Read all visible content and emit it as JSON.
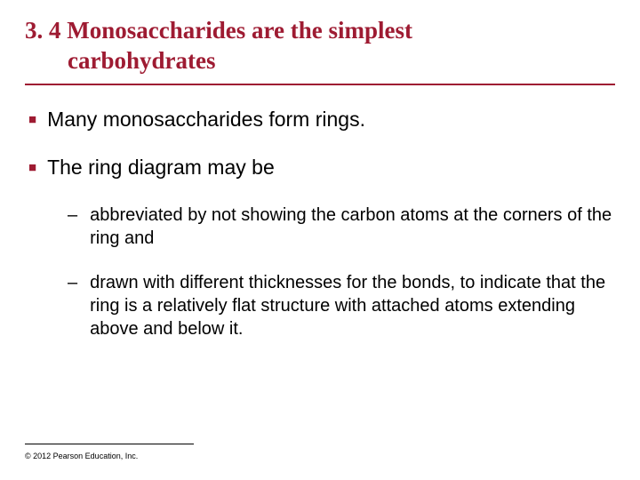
{
  "title": {
    "line1": "3. 4 Monosaccharides are the simplest",
    "line2": "carbohydrates",
    "color": "#9e1b32",
    "font_family": "Times New Roman",
    "font_weight": "bold",
    "fontsize": 27
  },
  "divider": {
    "color": "#9e1b32",
    "thickness": 2.5
  },
  "bullets": [
    {
      "level": 1,
      "marker": "■",
      "marker_color": "#9e1b32",
      "text": "Many monosaccharides form rings.",
      "fontsize": 23
    },
    {
      "level": 1,
      "marker": "■",
      "marker_color": "#9e1b32",
      "text": "The ring diagram may be",
      "fontsize": 23
    },
    {
      "level": 2,
      "marker": "–",
      "marker_color": "#000000",
      "text": "abbreviated by not showing the carbon atoms at the corners of the ring and",
      "fontsize": 20
    },
    {
      "level": 2,
      "marker": "–",
      "marker_color": "#000000",
      "text": "drawn with different thicknesses for the bonds, to indicate that the ring is a relatively flat structure with attached atoms extending above and below it.",
      "fontsize": 20
    }
  ],
  "footer": {
    "copyright": "© 2012 Pearson Education, Inc.",
    "fontsize": 9,
    "line_color": "#000000"
  },
  "background_color": "#ffffff",
  "text_color": "#000000"
}
